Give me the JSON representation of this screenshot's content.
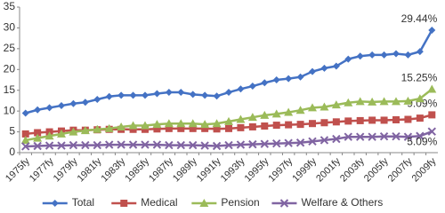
{
  "chart_data": {
    "type": "line",
    "categories": [
      "1975fy",
      null,
      "1977fy",
      null,
      "1979fy",
      null,
      "1981fy",
      null,
      "1983fy",
      null,
      "1985fy",
      null,
      "1987fy",
      null,
      "1989fy",
      null,
      "1991fy",
      null,
      "1993fy",
      null,
      "1995fy",
      null,
      "1997fy",
      null,
      "1999fy",
      null,
      "2001fy",
      null,
      "2003fy",
      null,
      "2005fy",
      null,
      "2007fy",
      null,
      "2009fy"
    ],
    "series": [
      {
        "name": "Total",
        "color": "#4472c4",
        "marker": "diamond",
        "values": [
          9.5,
          10.3,
          10.8,
          11.3,
          11.8,
          12.1,
          12.8,
          13.5,
          13.8,
          13.8,
          13.8,
          14.2,
          14.5,
          14.5,
          14.0,
          13.8,
          13.6,
          14.5,
          15.3,
          16.0,
          16.8,
          17.5,
          17.8,
          18.2,
          19.5,
          20.3,
          20.8,
          22.5,
          23.2,
          23.5,
          23.5,
          23.8,
          23.5,
          24.3,
          29.44
        ],
        "value_labels": [
          null,
          null,
          null,
          null,
          null,
          null,
          null,
          null,
          null,
          null,
          null,
          null,
          null,
          null,
          null,
          null,
          null,
          null,
          null,
          null,
          null,
          null,
          null,
          null,
          null,
          null,
          null,
          null,
          null,
          null,
          null,
          null,
          null,
          null,
          "29.44%"
        ]
      },
      {
        "name": "Medical",
        "color": "#c0504d",
        "marker": "square",
        "values": [
          4.5,
          4.8,
          5.0,
          5.2,
          5.4,
          5.4,
          5.5,
          5.6,
          5.6,
          5.6,
          5.6,
          5.7,
          5.8,
          5.8,
          5.8,
          5.8,
          5.7,
          5.8,
          6.0,
          6.2,
          6.4,
          6.6,
          6.7,
          6.8,
          7.0,
          7.2,
          7.4,
          7.6,
          7.7,
          7.8,
          7.8,
          7.9,
          8.0,
          8.3,
          9.09
        ],
        "value_labels": [
          null,
          null,
          null,
          null,
          null,
          null,
          null,
          null,
          null,
          null,
          null,
          null,
          null,
          null,
          null,
          null,
          null,
          null,
          null,
          null,
          null,
          null,
          null,
          null,
          null,
          null,
          null,
          null,
          null,
          null,
          null,
          null,
          null,
          null,
          "9.09%"
        ]
      },
      {
        "name": "Pension",
        "color": "#9bbb59",
        "marker": "triangle",
        "values": [
          3.0,
          3.5,
          4.0,
          4.5,
          5.0,
          5.3,
          5.6,
          5.8,
          6.2,
          6.5,
          6.5,
          6.8,
          7.0,
          7.0,
          7.0,
          6.8,
          7.0,
          7.5,
          8.0,
          8.5,
          9.0,
          9.3,
          9.7,
          10.2,
          10.8,
          11.0,
          11.5,
          12.0,
          12.3,
          12.2,
          12.3,
          12.3,
          12.4,
          13.0,
          15.25
        ],
        "value_labels": [
          null,
          null,
          null,
          null,
          null,
          null,
          null,
          null,
          null,
          null,
          null,
          null,
          null,
          null,
          null,
          null,
          null,
          null,
          null,
          null,
          null,
          null,
          null,
          null,
          null,
          null,
          null,
          null,
          null,
          null,
          null,
          null,
          null,
          null,
          "15.25%"
        ]
      },
      {
        "name": "Welfare & Others",
        "color": "#8064a2",
        "marker": "x",
        "values": [
          1.5,
          1.6,
          1.7,
          1.7,
          1.8,
          1.8,
          1.8,
          1.9,
          1.9,
          1.9,
          1.9,
          1.9,
          1.8,
          1.8,
          1.8,
          1.7,
          1.6,
          1.8,
          1.9,
          2.0,
          2.1,
          2.2,
          2.3,
          2.4,
          2.7,
          3.0,
          3.3,
          3.8,
          3.8,
          3.8,
          3.9,
          3.9,
          3.8,
          4.0,
          5.09
        ],
        "value_labels": [
          null,
          null,
          null,
          null,
          null,
          null,
          null,
          null,
          null,
          null,
          null,
          null,
          null,
          null,
          null,
          null,
          null,
          null,
          null,
          null,
          null,
          null,
          null,
          null,
          null,
          null,
          null,
          null,
          null,
          null,
          null,
          null,
          null,
          null,
          "5.09%"
        ]
      }
    ],
    "ylim": [
      0,
      35
    ],
    "yticks": [
      0,
      5,
      10,
      15,
      20,
      25,
      30,
      35
    ],
    "grid": false,
    "legend": "bottom"
  }
}
